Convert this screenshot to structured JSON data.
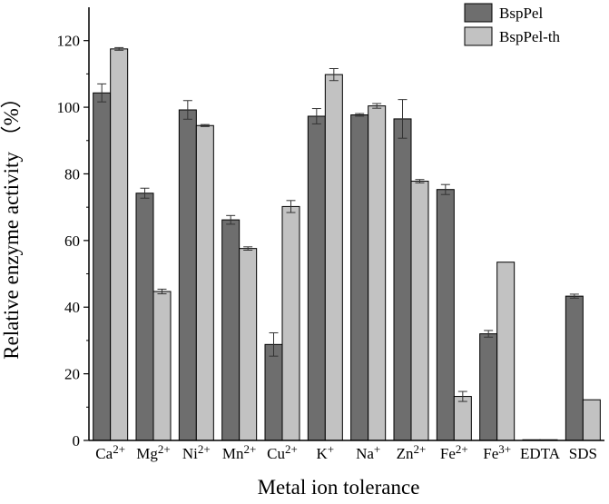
{
  "chart_data": {
    "type": "bar",
    "categories": [
      {
        "base": "Ca",
        "sup": "2+"
      },
      {
        "base": "Mg",
        "sup": "2+"
      },
      {
        "base": "Ni",
        "sup": "2+"
      },
      {
        "base": "Mn",
        "sup": "2+"
      },
      {
        "base": "Cu",
        "sup": "2+"
      },
      {
        "base": "K",
        "sup": "+"
      },
      {
        "base": "Na",
        "sup": "+"
      },
      {
        "base": "Zn",
        "sup": "2+"
      },
      {
        "base": "Fe",
        "sup": "2+"
      },
      {
        "base": "Fe",
        "sup": "3+"
      },
      {
        "base": "EDTA",
        "sup": ""
      },
      {
        "base": "SDS",
        "sup": ""
      }
    ],
    "series": [
      {
        "name": "BspPel",
        "color": "#6e6e6e",
        "values": [
          104.3,
          74.2,
          99.2,
          66.2,
          28.8,
          97.3,
          97.7,
          96.5,
          75.3,
          32.0,
          0.2,
          43.3
        ],
        "errors": [
          2.7,
          1.5,
          2.8,
          1.3,
          3.5,
          2.3,
          0.4,
          5.8,
          1.5,
          1.0,
          0,
          0.6
        ]
      },
      {
        "name": "BspPel-th",
        "color": "#c2c2c2",
        "values": [
          117.5,
          44.7,
          94.5,
          57.6,
          70.2,
          109.8,
          100.4,
          77.8,
          13.2,
          53.5,
          0.2,
          12.2
        ],
        "errors": [
          0.4,
          0.7,
          0.3,
          0.5,
          1.8,
          1.8,
          0.7,
          0.5,
          1.5,
          0,
          0,
          0
        ]
      }
    ],
    "xlabel": "Metal ion tolerance",
    "ylabel": "Relative enzyme activity （%）",
    "ylim": [
      0,
      130
    ],
    "yticks": [
      0,
      20,
      40,
      60,
      80,
      100,
      120
    ],
    "grid": false,
    "legend_position": "top-right"
  }
}
